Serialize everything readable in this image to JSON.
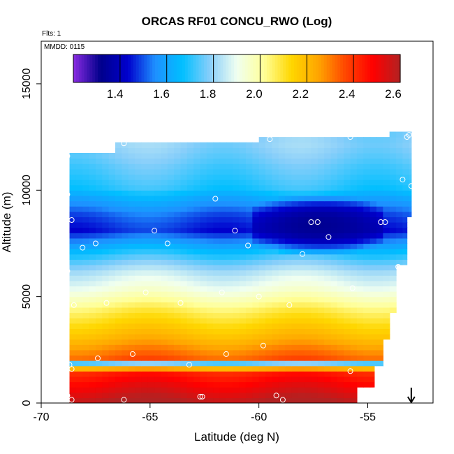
{
  "chart_data": {
    "type": "heatmap",
    "title": "ORCAS RF01 CONCU_RWO (Log)",
    "subtitle_flts": "Flts: 1",
    "subtitle_mmdd": "MMDD: 0115",
    "xlabel": "Latitude (deg N)",
    "ylabel": "Altitude (m)",
    "xlim": [
      -70,
      -52
    ],
    "ylim": [
      0,
      17000
    ],
    "x_ticks": [
      -70,
      -65,
      -60,
      -55
    ],
    "y_ticks": [
      0,
      5000,
      10000,
      15000
    ],
    "colorbar": {
      "range": [
        1.22,
        2.63
      ],
      "ticks": [
        1.4,
        1.6,
        1.8,
        2.0,
        2.2,
        2.4,
        2.6
      ],
      "colors": [
        "#8a2be2",
        "#00008b",
        "#0000cd",
        "#1e90ff",
        "#00bfff",
        "#87cefa",
        "#f0fff0",
        "#ffff99",
        "#ffd700",
        "#ffa500",
        "#ff4500",
        "#ff0000",
        "#b22222"
      ]
    },
    "columns_lat": [
      -68.7,
      -66.7,
      -62.7,
      -60.3,
      -55.0,
      -54.3,
      -53.2
    ],
    "columns_top_alt": [
      11700,
      12100,
      12200,
      12400,
      12500,
      12600,
      12700
    ],
    "bottom_edge_alt": [
      [
        -68.7,
        0
      ],
      [
        -55.5,
        0
      ],
      [
        -55.5,
        700
      ],
      [
        -54.7,
        700
      ],
      [
        -54.7,
        1600
      ],
      [
        -54.3,
        1600
      ],
      [
        -54.3,
        2800
      ],
      [
        -54.0,
        2800
      ],
      [
        -54.0,
        4200
      ],
      [
        -53.7,
        4200
      ],
      [
        -53.7,
        6400
      ],
      [
        -53.2,
        6400
      ],
      [
        -53.2,
        8600
      ],
      [
        -53.0,
        8600
      ],
      [
        -53.0,
        12700
      ]
    ],
    "profiles": [
      {
        "alt": 12000,
        "value": 1.8
      },
      {
        "alt": 11000,
        "value": 1.75
      },
      {
        "alt": 10000,
        "value": 1.72
      },
      {
        "alt": 9500,
        "value": 1.65
      },
      {
        "alt": 8700,
        "value": 1.55
      },
      {
        "alt": 8000,
        "value": 1.5
      },
      {
        "alt": 7500,
        "value": 1.6
      },
      {
        "alt": 7000,
        "value": 1.7
      },
      {
        "alt": 6500,
        "value": 1.78
      },
      {
        "alt": 6000,
        "value": 1.85
      },
      {
        "alt": 5300,
        "value": 1.92
      },
      {
        "alt": 4800,
        "value": 2.0
      },
      {
        "alt": 4200,
        "value": 2.1
      },
      {
        "alt": 3600,
        "value": 2.18
      },
      {
        "alt": 3000,
        "value": 2.25
      },
      {
        "alt": 2500,
        "value": 2.32
      },
      {
        "alt": 2000,
        "value": 2.38
      },
      {
        "alt": 1800,
        "value": 1.7
      },
      {
        "alt": 1400,
        "value": 2.45
      },
      {
        "alt": 900,
        "value": 2.5
      },
      {
        "alt": 400,
        "value": 2.55
      },
      {
        "alt": 0,
        "value": 2.6
      }
    ],
    "low_anomaly": {
      "lat_range": [
        -60.5,
        -54.5
      ],
      "alt_range": [
        6800,
        9700
      ],
      "value": 1.35
    },
    "flight_points": [
      [
        -68.8,
        11600
      ],
      [
        -68.8,
        9800
      ],
      [
        -68.6,
        8600
      ],
      [
        -68.1,
        7300
      ],
      [
        -67.5,
        7500
      ],
      [
        -68.8,
        6200
      ],
      [
        -68.5,
        4600
      ],
      [
        -66.2,
        12200
      ],
      [
        -64.8,
        8100
      ],
      [
        -64.2,
        7500
      ],
      [
        -63.6,
        4700
      ],
      [
        -65.2,
        5200
      ],
      [
        -67.0,
        4700
      ],
      [
        -62.0,
        9600
      ],
      [
        -61.1,
        8100
      ],
      [
        -61.7,
        5200
      ],
      [
        -60.5,
        7400
      ],
      [
        -60.0,
        5000
      ],
      [
        -59.5,
        12400
      ],
      [
        -58.6,
        4600
      ],
      [
        -58.0,
        7000
      ],
      [
        -57.6,
        8500
      ],
      [
        -57.3,
        8500
      ],
      [
        -56.8,
        7800
      ],
      [
        -55.8,
        12500
      ],
      [
        -55.7,
        5400
      ],
      [
        -54.4,
        8500
      ],
      [
        -54.2,
        8500
      ],
      [
        -53.6,
        6400
      ],
      [
        -53.4,
        10500
      ],
      [
        -53.2,
        12500
      ],
      [
        -53.1,
        12600
      ],
      [
        -53.0,
        10200
      ],
      [
        -68.7,
        1800
      ],
      [
        -68.6,
        1600
      ],
      [
        -67.4,
        2100
      ],
      [
        -65.8,
        2300
      ],
      [
        -63.2,
        1800
      ],
      [
        -61.5,
        2300
      ],
      [
        -59.8,
        2700
      ],
      [
        -55.8,
        1500
      ],
      [
        -54.5,
        1500
      ],
      [
        -54.7,
        600
      ],
      [
        -68.8,
        350
      ],
      [
        -68.6,
        150
      ],
      [
        -66.2,
        150
      ],
      [
        -62.7,
        300
      ],
      [
        -62.6,
        300
      ],
      [
        -59.2,
        350
      ],
      [
        -58.9,
        150
      ],
      [
        -55.1,
        150
      ]
    ],
    "arrow_lat": -53.0,
    "grid": false,
    "legend_placement": "top"
  }
}
